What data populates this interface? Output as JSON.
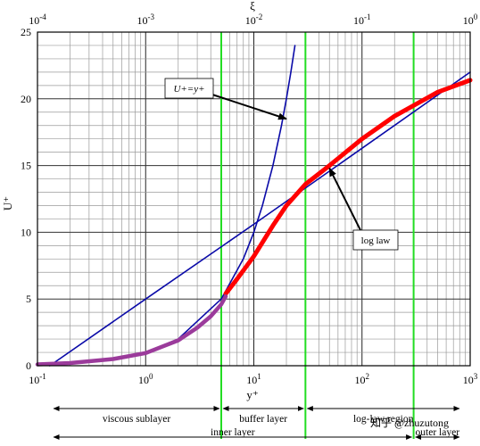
{
  "chart_data": {
    "type": "line",
    "xscale": "log",
    "xlim": [
      0.1,
      1000
    ],
    "ylim": [
      0,
      25
    ],
    "grid": true,
    "xlabel": "y⁺",
    "ylabel": "U⁺",
    "top_axis_label": "ξ",
    "x_ticks": [
      {
        "value": 0.1,
        "base": "10",
        "exp": "-1"
      },
      {
        "value": 1,
        "base": "10",
        "exp": "0"
      },
      {
        "value": 10,
        "base": "10",
        "exp": "1"
      },
      {
        "value": 100,
        "base": "10",
        "exp": "2"
      },
      {
        "value": 1000,
        "base": "10",
        "exp": "3"
      }
    ],
    "top_ticks": [
      {
        "value": 0.1,
        "base": "10",
        "exp": "-4"
      },
      {
        "value": 1,
        "base": "10",
        "exp": "-3"
      },
      {
        "value": 10,
        "base": "10",
        "exp": "-2"
      },
      {
        "value": 100,
        "base": "10",
        "exp": "-1"
      },
      {
        "value": 1000,
        "base": "10",
        "exp": "0"
      }
    ],
    "y_ticks": [
      0,
      5,
      10,
      15,
      20,
      25
    ],
    "series": [
      {
        "name": "U+=y+",
        "color": "#0a0aa8",
        "x": [
          0.1,
          0.2,
          0.5,
          1,
          2,
          5,
          8,
          10,
          12,
          15,
          18,
          20,
          22,
          24
        ],
        "y": [
          0.1,
          0.2,
          0.5,
          1,
          2,
          5,
          8,
          10,
          12,
          15,
          18,
          20,
          22,
          24
        ]
      },
      {
        "name": "log law",
        "color": "#0a0aa8",
        "x": [
          0.13,
          1,
          10,
          100,
          1000
        ],
        "y": [
          0,
          5.0,
          10.6,
          16.3,
          22.0
        ]
      },
      {
        "name": "",
        "color": "#ff0000",
        "x": [
          5.5,
          7,
          10,
          15,
          20,
          30,
          50,
          100,
          200,
          500,
          1000
        ],
        "y": [
          5.4,
          6.5,
          8.2,
          10.5,
          12.0,
          13.6,
          15.0,
          17.0,
          18.7,
          20.5,
          21.4
        ]
      },
      {
        "name": "",
        "color": "#9b3b9b",
        "x": [
          0.1,
          0.2,
          0.5,
          1,
          2,
          3,
          4,
          5,
          5.5
        ],
        "y": [
          0.1,
          0.2,
          0.5,
          0.95,
          1.9,
          2.85,
          3.7,
          4.6,
          5.2
        ]
      }
    ],
    "boundaries": [
      {
        "x": 5,
        "color": "#22dd22"
      },
      {
        "x": 30,
        "color": "#22dd22"
      },
      {
        "x": 300,
        "color": "#22dd22"
      }
    ],
    "annotations": [
      {
        "text": "U+=y+",
        "target": [
          20,
          18.5
        ]
      },
      {
        "text": "log law",
        "target": [
          50,
          14.8
        ]
      }
    ],
    "regions_row1": [
      {
        "label": "viscous sublayer",
        "from": 0.1,
        "to": 5
      },
      {
        "label": "buffer layer",
        "from": 5,
        "to": 30
      },
      {
        "label": "log-law region",
        "from": 30,
        "to": 1000
      }
    ],
    "regions_row2": [
      {
        "label": "inner layer",
        "from": 0.1,
        "to": 300
      },
      {
        "label": "outer layer",
        "from": 300,
        "to": 1000
      }
    ]
  },
  "watermark": "知乎 @zhuzutong"
}
